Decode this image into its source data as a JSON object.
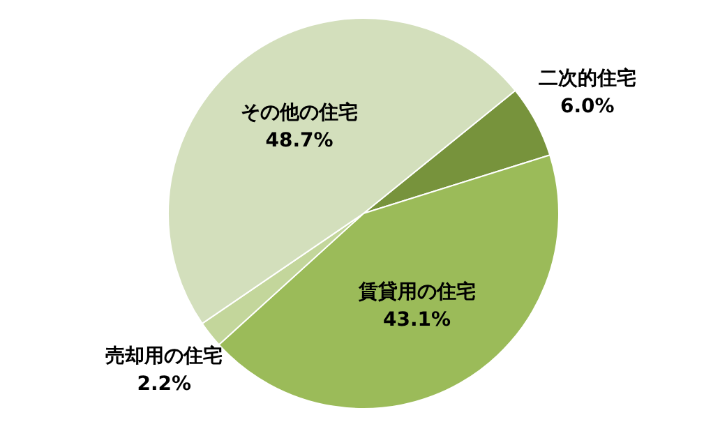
{
  "chart_data": {
    "type": "pie",
    "categories": [
      "二次的住宅",
      "賃貸用の住宅",
      "売却用の住宅",
      "その他の住宅"
    ],
    "values": [
      6.0,
      43.1,
      2.2,
      48.7
    ],
    "colors": [
      "#77933c",
      "#9bbb59",
      "#c3d69b",
      "#d3dfbc"
    ],
    "value_labels": [
      "6.0%",
      "43.1%",
      "2.2%",
      "48.7%"
    ],
    "legend": false
  }
}
